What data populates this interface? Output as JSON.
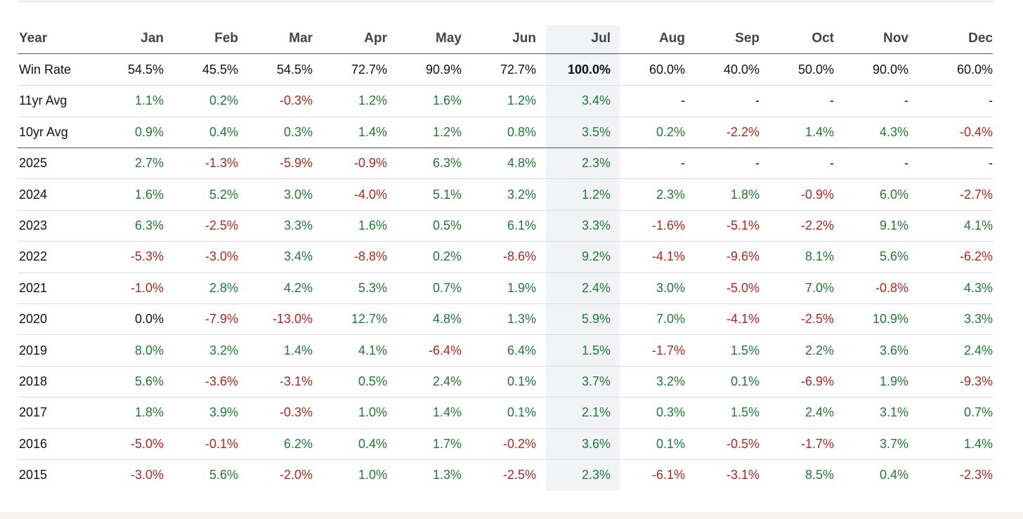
{
  "table": {
    "columns": [
      "Year",
      "Jan",
      "Feb",
      "Mar",
      "Apr",
      "May",
      "Jun",
      "Jul",
      "Aug",
      "Sep",
      "Oct",
      "Nov",
      "Dec"
    ],
    "rows": [
      [
        "Win Rate",
        "54.5%",
        "45.5%",
        "54.5%",
        "72.7%",
        "90.9%",
        "72.7%",
        "100.0%",
        "60.0%",
        "40.0%",
        "50.0%",
        "90.0%",
        "60.0%"
      ],
      [
        "11yr Avg",
        "1.1%",
        "0.2%",
        "-0.3%",
        "1.2%",
        "1.6%",
        "1.2%",
        "3.4%",
        "-",
        "-",
        "-",
        "-",
        "-"
      ],
      [
        "10yr Avg",
        "0.9%",
        "0.4%",
        "0.3%",
        "1.4%",
        "1.2%",
        "0.8%",
        "3.5%",
        "0.2%",
        "-2.2%",
        "1.4%",
        "4.3%",
        "-0.4%"
      ],
      [
        "2025",
        "2.7%",
        "-1.3%",
        "-5.9%",
        "-0.9%",
        "6.3%",
        "4.8%",
        "2.3%",
        "-",
        "-",
        "-",
        "-",
        "-"
      ],
      [
        "2024",
        "1.6%",
        "5.2%",
        "3.0%",
        "-4.0%",
        "5.1%",
        "3.2%",
        "1.2%",
        "2.3%",
        "1.8%",
        "-0.9%",
        "6.0%",
        "-2.7%"
      ],
      [
        "2023",
        "6.3%",
        "-2.5%",
        "3.3%",
        "1.6%",
        "0.5%",
        "6.1%",
        "3.3%",
        "-1.6%",
        "-5.1%",
        "-2.2%",
        "9.1%",
        "4.1%"
      ],
      [
        "2022",
        "-5.3%",
        "-3.0%",
        "3.4%",
        "-8.8%",
        "0.2%",
        "-8.6%",
        "9.2%",
        "-4.1%",
        "-9.6%",
        "8.1%",
        "5.6%",
        "-6.2%"
      ],
      [
        "2021",
        "-1.0%",
        "2.8%",
        "4.2%",
        "5.3%",
        "0.7%",
        "1.9%",
        "2.4%",
        "3.0%",
        "-5.0%",
        "7.0%",
        "-0.8%",
        "4.3%"
      ],
      [
        "2020",
        "0.0%",
        "-7.9%",
        "-13.0%",
        "12.7%",
        "4.8%",
        "1.3%",
        "5.9%",
        "7.0%",
        "-4.1%",
        "-2.5%",
        "10.9%",
        "3.3%"
      ],
      [
        "2019",
        "8.0%",
        "3.2%",
        "1.4%",
        "4.1%",
        "-6.4%",
        "6.4%",
        "1.5%",
        "-1.7%",
        "1.5%",
        "2.2%",
        "3.6%",
        "2.4%"
      ],
      [
        "2018",
        "5.6%",
        "-3.6%",
        "-3.1%",
        "0.5%",
        "2.4%",
        "0.1%",
        "3.7%",
        "3.2%",
        "0.1%",
        "-6.9%",
        "1.9%",
        "-9.3%"
      ],
      [
        "2017",
        "1.8%",
        "3.9%",
        "-0.3%",
        "1.0%",
        "1.4%",
        "0.1%",
        "2.1%",
        "0.3%",
        "1.5%",
        "2.4%",
        "3.1%",
        "0.7%"
      ],
      [
        "2016",
        "-5.0%",
        "-0.1%",
        "6.2%",
        "0.4%",
        "1.7%",
        "-0.2%",
        "3.6%",
        "0.1%",
        "-0.5%",
        "-1.7%",
        "3.7%",
        "1.4%"
      ],
      [
        "2015",
        "-3.0%",
        "5.6%",
        "-2.0%",
        "1.0%",
        "1.3%",
        "-2.5%",
        "2.3%",
        "-6.1%",
        "-3.1%",
        "8.5%",
        "0.4%",
        "-2.3%"
      ]
    ]
  }
}
